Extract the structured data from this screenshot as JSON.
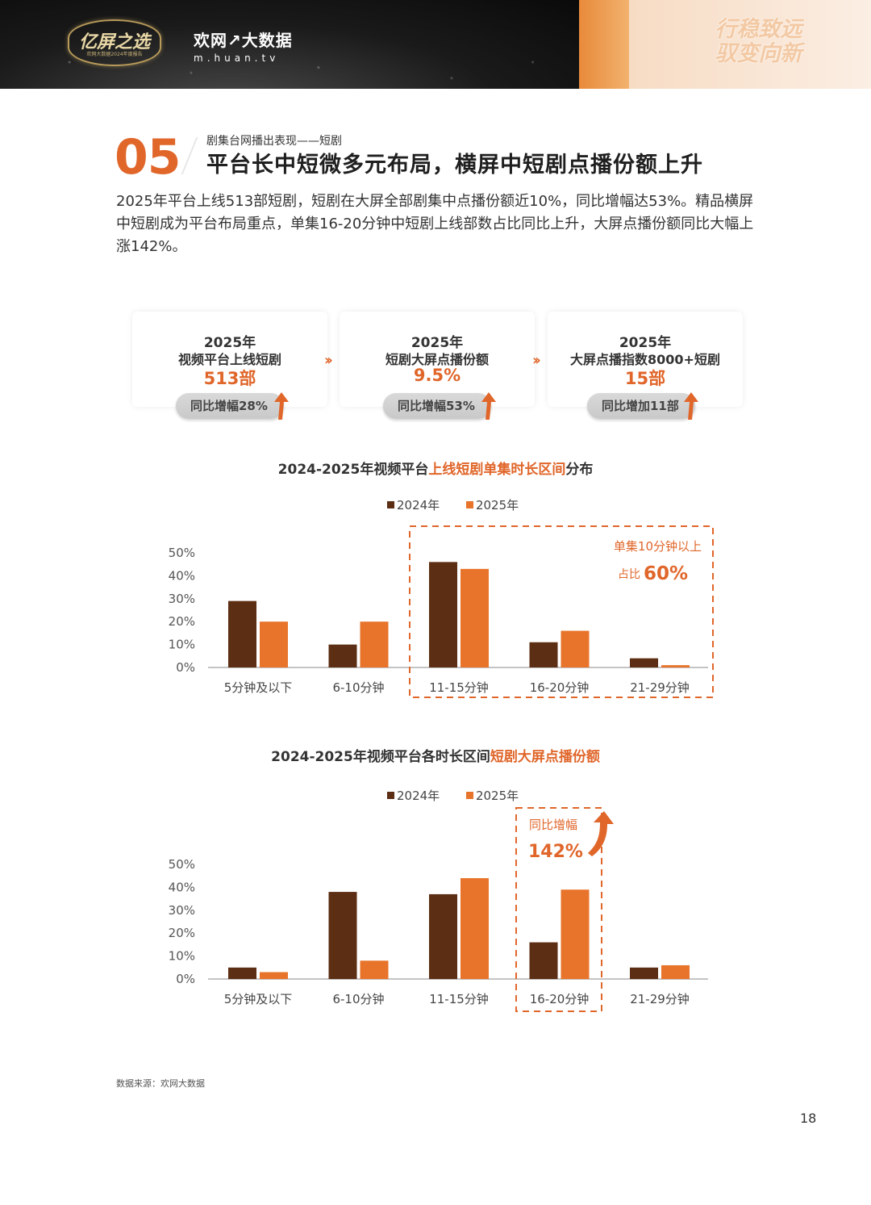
{
  "header": {
    "logo_yiping": "亿屏之选",
    "logo_yiping_sub": "欢网大数据2024年度报告",
    "logo_huan": "欢网↗大数据",
    "logo_url": "m.huan.tv",
    "slogan_line1": "行稳致远",
    "slogan_line2": "驭变向新"
  },
  "section": {
    "number": "05",
    "subtitle": "剧集台网播出表现——短剧",
    "title": "平台长中短微多元布局，横屏中短剧点播份额上升"
  },
  "intro": "2025年平台上线513部短剧，短剧在大屏全部剧集中点播份额近10%，同比增幅达53%。精品横屏中短剧成为平台布局重点，单集16-20分钟中短剧上线部数占比同比上升，大屏点播份额同比大幅上涨142%。",
  "kpis": [
    {
      "year": "2025年",
      "label": "视频平台上线短剧",
      "value": "513部",
      "badge": "同比增幅28%"
    },
    {
      "year": "2025年",
      "label": "短剧大屏点播份额",
      "value": "9.5%",
      "badge": "同比增幅53%"
    },
    {
      "year": "2025年",
      "label": "大屏点播指数8000+短剧",
      "value": "15部",
      "badge": "同比增加11部"
    }
  ],
  "colors": {
    "series2024": "#5c2e14",
    "series2025": "#e8732a",
    "accent": "#e0662a"
  },
  "chart_data": [
    {
      "type": "bar",
      "title_pre": "2024-2025年视频平台",
      "title_hl": "上线短剧单集时长区间",
      "title_post": "分布",
      "categories": [
        "5分钟及以下",
        "6-10分钟",
        "11-15分钟",
        "16-20分钟",
        "21-29分钟"
      ],
      "series": [
        {
          "name": "2024年",
          "values": [
            29,
            10,
            46,
            11,
            4
          ]
        },
        {
          "name": "2025年",
          "values": [
            20,
            20,
            43,
            16,
            1
          ]
        }
      ],
      "y_ticks": [
        "0%",
        "10%",
        "20%",
        "30%",
        "40%",
        "50%"
      ],
      "ylim": [
        0,
        50
      ],
      "annotation": {
        "line1": "单集10分钟以上",
        "line2_prefix": "占比",
        "line2_value": "60%"
      }
    },
    {
      "type": "bar",
      "title_pre": "2024-2025年视频平台各时长区间",
      "title_hl": "短剧大屏点播份额",
      "title_post": "",
      "categories": [
        "5分钟及以下",
        "6-10分钟",
        "11-15分钟",
        "16-20分钟",
        "21-29分钟"
      ],
      "series": [
        {
          "name": "2024年",
          "values": [
            5,
            38,
            37,
            16,
            5
          ]
        },
        {
          "name": "2025年",
          "values": [
            3,
            8,
            44,
            39,
            6
          ]
        }
      ],
      "y_ticks": [
        "0%",
        "10%",
        "20%",
        "30%",
        "40%",
        "50%"
      ],
      "ylim": [
        0,
        50
      ],
      "annotation": {
        "line1": "同比增幅",
        "line2_value": "142%"
      }
    }
  ],
  "footer": {
    "source": "数据来源：欢网大数据",
    "page": "18"
  }
}
